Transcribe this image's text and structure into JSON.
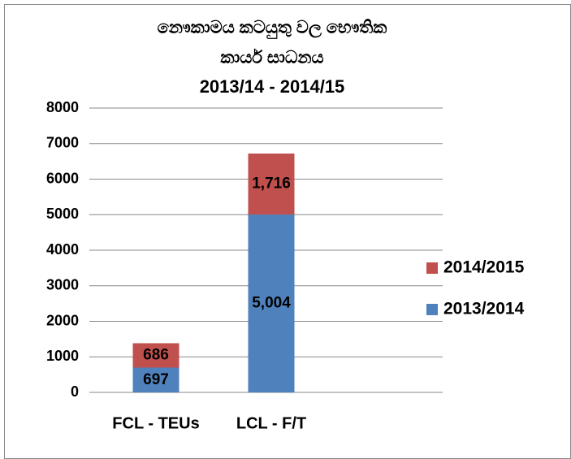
{
  "chart_data": {
    "type": "stacked_bar",
    "title": [
      "නෞකාමය කටයුතු වල භෞතික",
      "කාර්ය සාධනය",
      "2013/14 - 2014/15"
    ],
    "categories": [
      "FCL - TEUs",
      "LCL - F/T"
    ],
    "series": [
      {
        "name": "2013/2014",
        "color": "#4f81bd",
        "values": [
          697,
          5004
        ],
        "value_labels": [
          "697",
          "5,004"
        ]
      },
      {
        "name": "2014/2015",
        "color": "#c0504d",
        "values": [
          686,
          1716
        ],
        "value_labels": [
          "686",
          "1,716"
        ]
      }
    ],
    "ylim": [
      0,
      8000
    ],
    "yticks": [
      0,
      1000,
      2000,
      3000,
      4000,
      5000,
      6000,
      7000,
      8000
    ],
    "grid": true,
    "legend": "right"
  }
}
